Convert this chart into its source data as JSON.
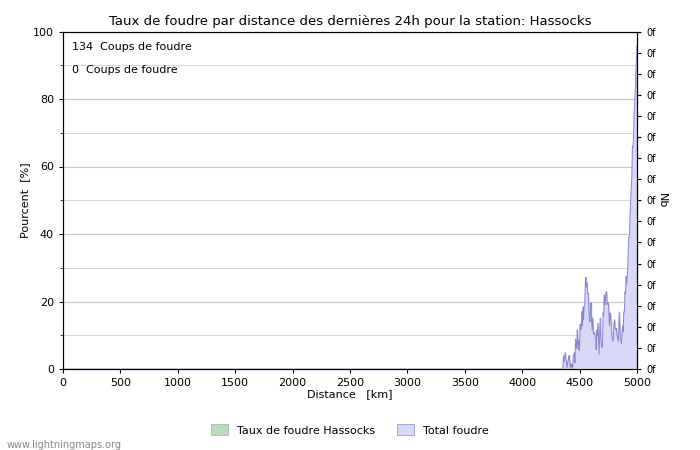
{
  "title": "Taux de foudre par distance des dernières 24h pour la station: Hassocks",
  "xlabel": "Distance   [km]",
  "ylabel_left": "Pourcent  [%]",
  "ylabel_right": "Nb",
  "annotation_line1": "134  Coups de foudre",
  "annotation_line2": "0  Coups de foudre",
  "legend_label1": "Taux de foudre Hassocks",
  "legend_label2": "Total foudre",
  "watermark": "www.lightningmaps.org",
  "xlim": [
    0,
    5000
  ],
  "ylim_left": [
    0,
    100
  ],
  "right_ticks_labels": [
    "0f",
    "0f",
    "0f",
    "0f",
    "0f",
    "0f",
    "0f",
    "0f",
    "0f",
    "0f",
    "0f",
    "0f",
    "0f",
    "0f",
    "0f",
    "0f",
    "0f"
  ],
  "bg_color": "#ffffff",
  "grid_color": "#c8c8c8",
  "line_color": "#8888cc",
  "fill_color": "#d8d8f8",
  "fill_green_color": "#cceecc",
  "bar_green_color": "#bbddbb",
  "x_ticks": [
    0,
    500,
    1000,
    1500,
    2000,
    2500,
    3000,
    3500,
    4000,
    4500,
    5000
  ],
  "y_ticks_left": [
    0,
    20,
    40,
    60,
    80,
    100
  ],
  "y_minor_ticks": [
    10,
    30,
    50,
    70,
    90
  ]
}
